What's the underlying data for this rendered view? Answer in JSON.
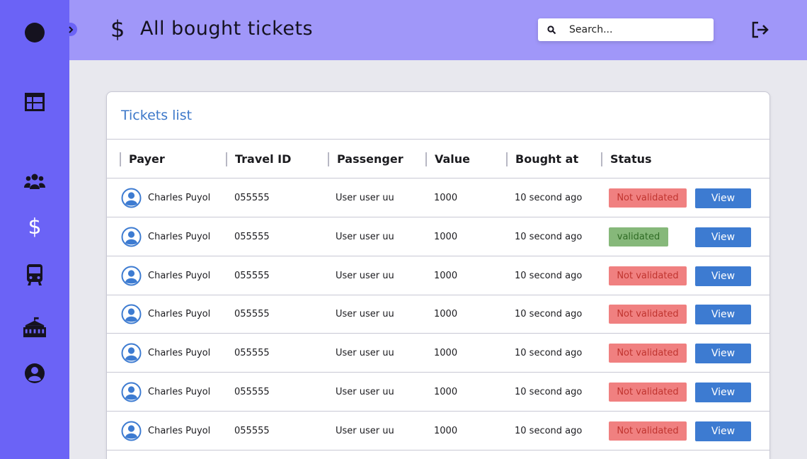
{
  "header": {
    "title_icon": "dollar-sign",
    "title": "All bought tickets",
    "search_placeholder": "Search...",
    "logout_icon": "logout-icon"
  },
  "sidebar": {
    "items": [
      {
        "icon": "dashboard-icon"
      },
      {
        "icon": "users-icon"
      },
      {
        "icon": "dollar-icon"
      },
      {
        "icon": "bus-icon"
      },
      {
        "icon": "building-icon"
      },
      {
        "icon": "user-circle-icon"
      }
    ]
  },
  "card": {
    "title": "Tickets list",
    "columns": [
      "Payer",
      "Travel ID",
      "Passenger",
      "Value",
      "Bought at",
      "Status"
    ],
    "rows": [
      {
        "payer": "Charles Puyol",
        "travel_id": "055555",
        "passenger": "User user uu",
        "value": "1000",
        "bought_at": "10 second ago",
        "status": "Not validated",
        "action": "View"
      },
      {
        "payer": "Charles Puyol",
        "travel_id": "055555",
        "passenger": "User user uu",
        "value": "1000",
        "bought_at": "10 second ago",
        "status": "validated",
        "action": "View"
      },
      {
        "payer": "Charles Puyol",
        "travel_id": "055555",
        "passenger": "User user uu",
        "value": "1000",
        "bought_at": "10 second ago",
        "status": "Not validated",
        "action": "View"
      },
      {
        "payer": "Charles Puyol",
        "travel_id": "055555",
        "passenger": "User user uu",
        "value": "1000",
        "bought_at": "10 second ago",
        "status": "Not validated",
        "action": "View"
      },
      {
        "payer": "Charles Puyol",
        "travel_id": "055555",
        "passenger": "User user uu",
        "value": "1000",
        "bought_at": "10 second ago",
        "status": "Not validated",
        "action": "View"
      },
      {
        "payer": "Charles Puyol",
        "travel_id": "055555",
        "passenger": "User user uu",
        "value": "1000",
        "bought_at": "10 second ago",
        "status": "Not validated",
        "action": "View"
      },
      {
        "payer": "Charles Puyol",
        "travel_id": "055555",
        "passenger": "User user uu",
        "value": "1000",
        "bought_at": "10 second ago",
        "status": "Not validated",
        "action": "View"
      }
    ]
  },
  "colors": {
    "sidebar": "#6b63f6",
    "header": "#a097f9",
    "accent_blue": "#3d7bd1",
    "status_not_validated_bg": "#f08080",
    "status_validated_bg": "#86b87a"
  }
}
